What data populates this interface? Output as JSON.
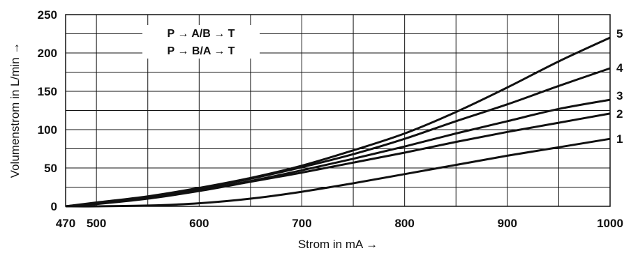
{
  "chart_data": {
    "type": "line",
    "xlabel": "Strom in mA →",
    "ylabel": "Volumenstrom in L/min →",
    "xlim": [
      470,
      1000
    ],
    "ylim": [
      0,
      250
    ],
    "x_ticks": [
      470,
      500,
      600,
      700,
      800,
      900,
      1000
    ],
    "y_ticks": [
      0,
      50,
      100,
      150,
      200,
      250
    ],
    "x_grid": [
      500,
      550,
      600,
      650,
      700,
      750,
      800,
      850,
      900,
      950
    ],
    "y_grid": [
      25,
      50,
      75,
      100,
      125,
      150,
      175,
      200,
      225
    ],
    "grid": true,
    "annotations": [
      "P → A/B → T",
      "P → B/A → T"
    ],
    "x": [
      470,
      500,
      550,
      600,
      650,
      700,
      750,
      800,
      850,
      900,
      950,
      1000
    ],
    "series": [
      {
        "name": "1",
        "values": [
          0,
          0,
          1,
          4,
          10,
          19,
          30,
          42,
          54,
          66,
          77,
          88
        ]
      },
      {
        "name": "2",
        "values": [
          0,
          3,
          10,
          20,
          32,
          44,
          57,
          70,
          84,
          97,
          109,
          121
        ]
      },
      {
        "name": "3",
        "values": [
          0,
          4,
          11,
          21,
          33,
          47,
          62,
          78,
          95,
          111,
          127,
          139
        ]
      },
      {
        "name": "4",
        "values": [
          0,
          4,
          12,
          23,
          36,
          51,
          68,
          88,
          111,
          133,
          157,
          180
        ]
      },
      {
        "name": "5",
        "values": [
          0,
          5,
          13,
          24,
          37,
          53,
          73,
          95,
          123,
          155,
          189,
          220
        ]
      }
    ]
  }
}
